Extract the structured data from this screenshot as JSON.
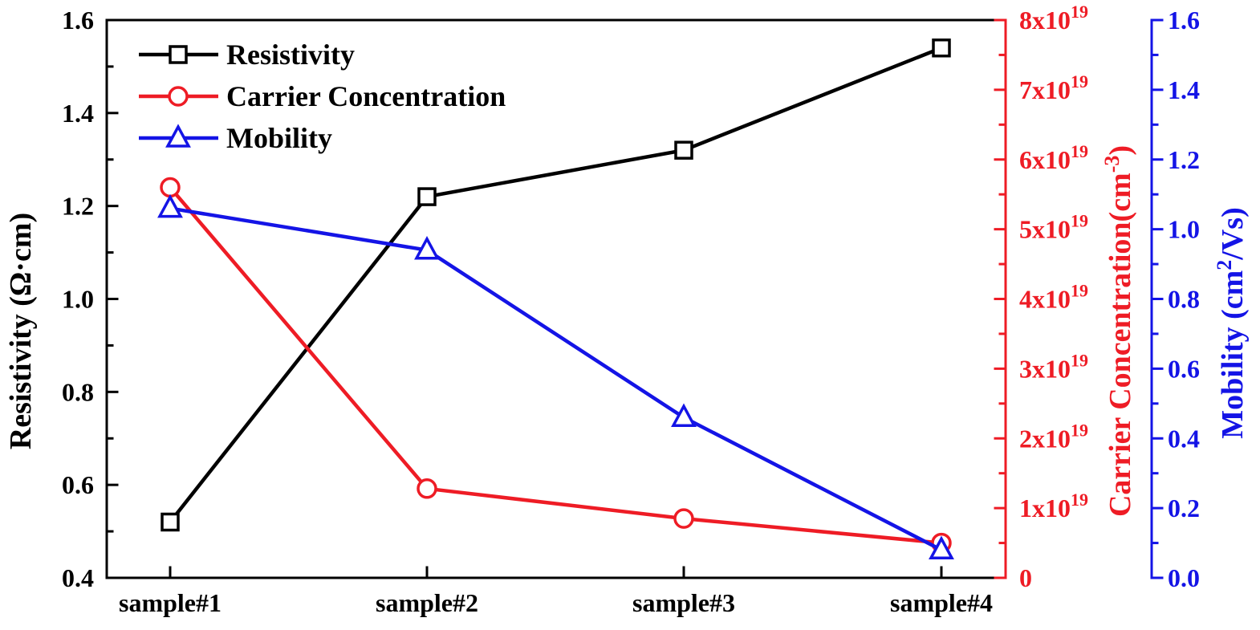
{
  "chart_data": {
    "type": "line",
    "categories": [
      "sample#1",
      "sample#2",
      "sample#3",
      "sample#4"
    ],
    "x_axis": {
      "tick_labels": [
        "sample#1",
        "sample#2",
        "sample#3",
        "sample#4"
      ],
      "title": ""
    },
    "axes": {
      "left": {
        "title_prefix": "Resistivity (",
        "title_unit": "Ω·cm",
        "title_suffix": ")",
        "ylim": [
          0.4,
          1.6
        ],
        "ticks": [
          0.4,
          0.6,
          0.8,
          1.0,
          1.2,
          1.4,
          1.6
        ],
        "tick_labels": [
          "0.4",
          "0.6",
          "0.8",
          "1.0",
          "1.2",
          "1.4",
          "1.6"
        ],
        "color": "#000000"
      },
      "right1": {
        "title_prefix": "Carrier Concentration(cm",
        "title_sup": "-3",
        "title_suffix": ")",
        "ylim": [
          0,
          8e+19
        ],
        "ticks": [
          0,
          1e+19,
          2e+19,
          3e+19,
          4e+19,
          5e+19,
          6e+19,
          7e+19,
          8e+19
        ],
        "tick_labels": [
          {
            "base": "0",
            "exp": ""
          },
          {
            "base": "1x10",
            "exp": "19"
          },
          {
            "base": "2x10",
            "exp": "19"
          },
          {
            "base": "3x10",
            "exp": "19"
          },
          {
            "base": "4x10",
            "exp": "19"
          },
          {
            "base": "5x10",
            "exp": "19"
          },
          {
            "base": "6x10",
            "exp": "19"
          },
          {
            "base": "7x10",
            "exp": "19"
          },
          {
            "base": "8x10",
            "exp": "19"
          }
        ],
        "color": "#ee1c25"
      },
      "right2": {
        "title_prefix": "Mobility (cm",
        "title_sup": "2",
        "title_suffix": "/Vs)",
        "ylim": [
          0.0,
          1.6
        ],
        "ticks": [
          0.0,
          0.2,
          0.4,
          0.6,
          0.8,
          1.0,
          1.2,
          1.4,
          1.6
        ],
        "tick_labels": [
          "0.0",
          "0.2",
          "0.4",
          "0.6",
          "0.8",
          "1.0",
          "1.2",
          "1.4",
          "1.6"
        ],
        "color": "#1414e6"
      }
    },
    "series": [
      {
        "name": "Resistivity",
        "axis": "left",
        "marker": "square",
        "color": "#000000",
        "values": [
          0.52,
          1.22,
          1.32,
          1.54
        ]
      },
      {
        "name": "Carrier Concentration",
        "axis": "right1",
        "marker": "circle",
        "color": "#ee1c25",
        "values": [
          5.6e+19,
          1.28e+19,
          8.5e+18,
          5e+18
        ]
      },
      {
        "name": "Mobility",
        "axis": "right2",
        "marker": "triangle",
        "color": "#1414e6",
        "values": [
          1.06,
          0.94,
          0.46,
          0.08
        ]
      }
    ],
    "legend": {
      "placement": "top-left"
    },
    "grid": false
  }
}
